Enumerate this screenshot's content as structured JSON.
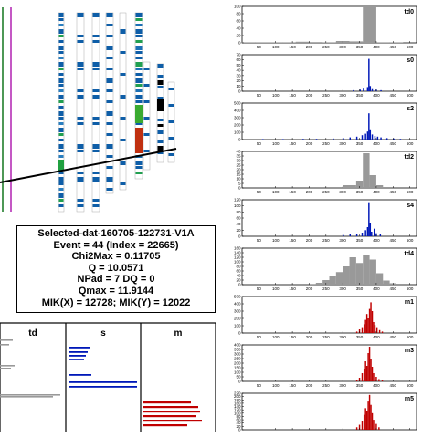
{
  "info_box": {
    "lines": [
      "Selected-dat-160705-122731-V1A",
      "Event = 44 (Index = 22665)",
      "Chi2Max = 0.11705",
      "Q = 10.0571",
      "NPad = 7 DQ = 0",
      "Qmax = 11.9144",
      "MIK(X) = 12728; MIK(Y) = 12022"
    ]
  },
  "bottom_panels": [
    {
      "label": "td",
      "color": "#999999"
    },
    {
      "label": "s",
      "color": "#0018b8"
    },
    {
      "label": "m",
      "color": "#c00000"
    }
  ],
  "chart_data": [
    {
      "type": "bar",
      "title": "td0",
      "color": "#999999",
      "xlim": [
        0,
        520
      ],
      "xticks": [
        "50",
        "100",
        "150",
        "200",
        "250",
        "300",
        "350",
        "400",
        "450",
        "500"
      ],
      "ylim": [
        0,
        100
      ],
      "yticks": [
        "0",
        "20",
        "40",
        "60",
        "80",
        "100"
      ],
      "bins": [
        [
          0,
          40,
          1
        ],
        [
          40,
          80,
          1
        ],
        [
          80,
          120,
          1
        ],
        [
          120,
          160,
          1
        ],
        [
          160,
          200,
          3
        ],
        [
          200,
          240,
          2
        ],
        [
          240,
          280,
          1
        ],
        [
          280,
          320,
          5
        ],
        [
          320,
          360,
          4
        ],
        [
          360,
          400,
          100
        ],
        [
          400,
          440,
          1
        ],
        [
          440,
          480,
          1
        ]
      ]
    },
    {
      "type": "bar",
      "title": "s0",
      "color": "#0018b8",
      "xlim": [
        0,
        520
      ],
      "xticks": [
        "50",
        "100",
        "150",
        "200",
        "250",
        "300",
        "350",
        "400",
        "450",
        "500"
      ],
      "ylim": [
        0,
        70
      ],
      "yticks": [
        "0",
        "10",
        "20",
        "30",
        "40",
        "50",
        "60",
        "70"
      ],
      "bins": [
        [
          330,
          334,
          2
        ],
        [
          350,
          354,
          3
        ],
        [
          360,
          364,
          5
        ],
        [
          372,
          376,
          8
        ],
        [
          376,
          380,
          62
        ],
        [
          380,
          384,
          10
        ],
        [
          386,
          390,
          4
        ],
        [
          398,
          402,
          3
        ],
        [
          412,
          416,
          2
        ]
      ]
    },
    {
      "type": "bar",
      "title": "s2",
      "color": "#0018b8",
      "xlim": [
        0,
        520
      ],
      "xticks": [
        "50",
        "100",
        "150",
        "200",
        "250",
        "300",
        "350",
        "400",
        "450",
        "500"
      ],
      "ylim": [
        0,
        500
      ],
      "yticks": [
        "0",
        "100",
        "200",
        "300",
        "400",
        "500"
      ],
      "bins": [
        [
          60,
          64,
          5
        ],
        [
          120,
          124,
          5
        ],
        [
          180,
          184,
          10
        ],
        [
          220,
          224,
          10
        ],
        [
          270,
          274,
          15
        ],
        [
          300,
          304,
          20
        ],
        [
          320,
          324,
          30
        ],
        [
          340,
          344,
          40
        ],
        [
          356,
          360,
          60
        ],
        [
          366,
          370,
          80
        ],
        [
          372,
          376,
          110
        ],
        [
          376,
          380,
          360
        ],
        [
          380,
          384,
          140
        ],
        [
          386,
          390,
          70
        ],
        [
          394,
          398,
          50
        ],
        [
          402,
          406,
          40
        ],
        [
          412,
          416,
          30
        ],
        [
          430,
          434,
          20
        ],
        [
          450,
          454,
          15
        ],
        [
          470,
          474,
          10
        ]
      ]
    },
    {
      "type": "bar",
      "title": "td2",
      "color": "#999999",
      "xlim": [
        0,
        520
      ],
      "xticks": [
        "50",
        "100",
        "150",
        "200",
        "250",
        "300",
        "350",
        "400",
        "450",
        "500"
      ],
      "ylim": [
        0,
        40
      ],
      "yticks": [
        "0",
        "5",
        "10",
        "15",
        "20",
        "25",
        "30",
        "35",
        "40"
      ],
      "bins": [
        [
          300,
          340,
          3
        ],
        [
          340,
          360,
          8
        ],
        [
          360,
          380,
          38
        ],
        [
          380,
          400,
          14
        ],
        [
          400,
          420,
          3
        ]
      ]
    },
    {
      "type": "bar",
      "title": "s4",
      "color": "#0018b8",
      "xlim": [
        0,
        520
      ],
      "xticks": [
        "50",
        "100",
        "150",
        "200",
        "250",
        "300",
        "350",
        "400",
        "450",
        "500"
      ],
      "ylim": [
        0,
        120
      ],
      "yticks": [
        "0",
        "20",
        "40",
        "60",
        "80",
        "100",
        "120"
      ],
      "bins": [
        [
          300,
          304,
          4
        ],
        [
          320,
          324,
          6
        ],
        [
          340,
          344,
          8
        ],
        [
          356,
          360,
          12
        ],
        [
          366,
          370,
          20
        ],
        [
          372,
          376,
          30
        ],
        [
          376,
          380,
          112
        ],
        [
          380,
          384,
          45
        ],
        [
          384,
          388,
          15
        ],
        [
          392,
          396,
          25
        ],
        [
          398,
          402,
          10
        ],
        [
          410,
          414,
          6
        ]
      ]
    },
    {
      "type": "bar",
      "title": "td4",
      "color": "#999999",
      "xlim": [
        0,
        520
      ],
      "xticks": [
        "50",
        "100",
        "150",
        "200",
        "250",
        "300",
        "350",
        "400",
        "450",
        "500"
      ],
      "ylim": [
        0,
        160
      ],
      "yticks": [
        "0",
        "20",
        "40",
        "60",
        "80",
        "100",
        "120",
        "140",
        "160"
      ],
      "bins": [
        [
          200,
          220,
          3
        ],
        [
          220,
          240,
          8
        ],
        [
          240,
          260,
          20
        ],
        [
          260,
          280,
          40
        ],
        [
          280,
          300,
          55
        ],
        [
          300,
          320,
          80
        ],
        [
          320,
          340,
          120
        ],
        [
          340,
          360,
          95
        ],
        [
          360,
          380,
          130
        ],
        [
          380,
          400,
          110
        ],
        [
          400,
          420,
          50
        ],
        [
          420,
          440,
          18
        ],
        [
          440,
          460,
          6
        ]
      ]
    },
    {
      "type": "bar",
      "title": "m1",
      "color": "#c00000",
      "xlim": [
        0,
        520
      ],
      "xticks": [
        "50",
        "100",
        "150",
        "200",
        "250",
        "300",
        "350",
        "400",
        "450",
        "500"
      ],
      "ylim": [
        0,
        500
      ],
      "yticks": [
        "0",
        "100",
        "200",
        "300",
        "400",
        "500"
      ],
      "bins": [
        [
          340,
          344,
          20
        ],
        [
          348,
          352,
          50
        ],
        [
          356,
          360,
          80
        ],
        [
          362,
          366,
          120
        ],
        [
          366,
          370,
          180
        ],
        [
          370,
          374,
          260
        ],
        [
          374,
          378,
          200
        ],
        [
          378,
          382,
          330
        ],
        [
          382,
          386,
          420
        ],
        [
          386,
          390,
          300
        ],
        [
          390,
          394,
          150
        ],
        [
          394,
          398,
          110
        ],
        [
          400,
          404,
          80
        ],
        [
          408,
          412,
          40
        ],
        [
          416,
          420,
          20
        ]
      ]
    },
    {
      "type": "bar",
      "title": "m3",
      "color": "#c00000",
      "xlim": [
        0,
        520
      ],
      "xticks": [
        "50",
        "100",
        "150",
        "200",
        "250",
        "300",
        "350",
        "400",
        "450",
        "500"
      ],
      "ylim": [
        0,
        400
      ],
      "yticks": [
        "0",
        "50",
        "100",
        "150",
        "200",
        "250",
        "300",
        "350",
        "400"
      ],
      "bins": [
        [
          340,
          344,
          15
        ],
        [
          348,
          352,
          40
        ],
        [
          356,
          360,
          90
        ],
        [
          362,
          366,
          140
        ],
        [
          366,
          370,
          220
        ],
        [
          370,
          374,
          170
        ],
        [
          374,
          378,
          310
        ],
        [
          378,
          382,
          380
        ],
        [
          382,
          386,
          250
        ],
        [
          386,
          390,
          160
        ],
        [
          390,
          394,
          90
        ],
        [
          398,
          402,
          50
        ],
        [
          406,
          410,
          25
        ],
        [
          416,
          420,
          10
        ]
      ]
    },
    {
      "type": "bar",
      "title": "m5",
      "color": "#c00000",
      "xlim": [
        0,
        520
      ],
      "xticks": [
        "50",
        "100",
        "150",
        "200",
        "250",
        "300",
        "350",
        "400",
        "450",
        "500"
      ],
      "ylim": [
        0,
        220
      ],
      "yticks": [
        "0",
        "20",
        "40",
        "60",
        "80",
        "100",
        "120",
        "140",
        "160",
        "180",
        "200",
        "220"
      ],
      "bins": [
        [
          340,
          344,
          15
        ],
        [
          348,
          352,
          30
        ],
        [
          356,
          360,
          55
        ],
        [
          362,
          366,
          90
        ],
        [
          366,
          370,
          130
        ],
        [
          370,
          374,
          110
        ],
        [
          374,
          378,
          170
        ],
        [
          378,
          382,
          210
        ],
        [
          382,
          386,
          150
        ],
        [
          386,
          390,
          100
        ],
        [
          390,
          394,
          60
        ],
        [
          398,
          402,
          35
        ],
        [
          406,
          410,
          15
        ]
      ]
    }
  ]
}
